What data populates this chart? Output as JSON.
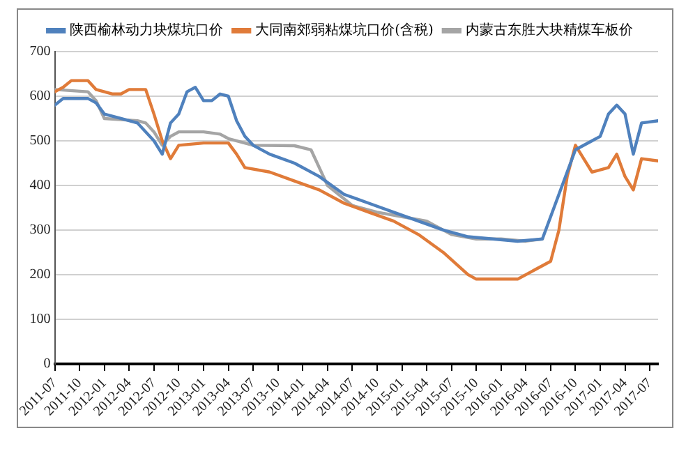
{
  "chart_data": {
    "type": "line",
    "legend": "top",
    "grid": "y",
    "marker": "none",
    "line_style": "solid",
    "xlim": [
      "2011-07",
      "2017-08"
    ],
    "xticks": [
      "2011-07",
      "2011-10",
      "2012-01",
      "2012-04",
      "2012-07",
      "2012-10",
      "2013-01",
      "2013-04",
      "2013-07",
      "2013-10",
      "2014-01",
      "2014-04",
      "2014-07",
      "2014-10",
      "2015-01",
      "2015-04",
      "2015-07",
      "2015-10",
      "2016-01",
      "2016-04",
      "2016-07",
      "2016-10",
      "2017-01",
      "2017-04",
      "2017-07"
    ],
    "ylim": [
      0,
      700
    ],
    "yticks": [
      0,
      100,
      200,
      300,
      400,
      500,
      600,
      700
    ],
    "series": [
      {
        "name": "陕西榆林动力块煤坑口价",
        "color": "#4f81bd",
        "x": [
          "2011-07",
          "2011-08",
          "2011-11",
          "2011-12",
          "2012-01",
          "2012-03",
          "2012-05",
          "2012-07",
          "2012-08",
          "2012-09",
          "2012-10",
          "2012-11",
          "2012-12",
          "2013-01",
          "2013-02",
          "2013-03",
          "2013-04",
          "2013-05",
          "2013-06",
          "2013-07",
          "2013-09",
          "2013-12",
          "2014-03",
          "2014-06",
          "2014-09",
          "2014-12",
          "2015-03",
          "2015-06",
          "2015-09",
          "2015-12",
          "2016-03",
          "2016-06",
          "2016-08",
          "2016-10",
          "2016-12",
          "2017-01",
          "2017-02",
          "2017-03",
          "2017-04",
          "2017-05",
          "2017-06",
          "2017-08"
        ],
        "values": [
          580,
          595,
          595,
          585,
          560,
          550,
          540,
          500,
          470,
          540,
          560,
          610,
          620,
          590,
          590,
          605,
          600,
          545,
          510,
          490,
          470,
          450,
          420,
          380,
          360,
          340,
          320,
          300,
          285,
          280,
          275,
          280,
          380,
          480,
          500,
          510,
          560,
          580,
          560,
          470,
          540,
          545
        ]
      },
      {
        "name": "大同南郊弱粘煤坑口价(含税)",
        "color": "#e07b39",
        "x": [
          "2011-07",
          "2011-08",
          "2011-09",
          "2011-11",
          "2011-12",
          "2012-02",
          "2012-03",
          "2012-04",
          "2012-06",
          "2012-07",
          "2012-08",
          "2012-09",
          "2012-10",
          "2013-01",
          "2013-04",
          "2013-05",
          "2013-06",
          "2013-09",
          "2013-12",
          "2014-03",
          "2014-06",
          "2014-09",
          "2014-12",
          "2015-03",
          "2015-06",
          "2015-09",
          "2015-10",
          "2016-03",
          "2016-05",
          "2016-07",
          "2016-08",
          "2016-09",
          "2016-10",
          "2016-11",
          "2016-12",
          "2017-02",
          "2017-03",
          "2017-04",
          "2017-05",
          "2017-06",
          "2017-08"
        ],
        "values": [
          610,
          620,
          635,
          635,
          615,
          605,
          605,
          615,
          615,
          560,
          500,
          460,
          490,
          495,
          495,
          470,
          440,
          430,
          410,
          390,
          360,
          340,
          320,
          290,
          250,
          200,
          190,
          190,
          210,
          230,
          300,
          420,
          490,
          460,
          430,
          440,
          470,
          420,
          390,
          460,
          455
        ]
      },
      {
        "name": "内蒙古东胜大块精煤车板价",
        "color": "#a5a5a5",
        "x": [
          "2011-07",
          "2011-11",
          "2011-12",
          "2012-01",
          "2012-05",
          "2012-06",
          "2012-07",
          "2012-08",
          "2012-09",
          "2012-10",
          "2013-01",
          "2013-03",
          "2013-04",
          "2013-07",
          "2013-12",
          "2014-02",
          "2014-04",
          "2014-07",
          "2014-10",
          "2015-01",
          "2015-04",
          "2015-07",
          "2015-10",
          "2016-01",
          "2016-04",
          "2016-06"
        ],
        "values": [
          615,
          610,
          590,
          550,
          545,
          540,
          520,
          490,
          510,
          520,
          520,
          515,
          505,
          490,
          489,
          480,
          400,
          355,
          340,
          330,
          320,
          290,
          280,
          280,
          275,
          280
        ]
      }
    ]
  }
}
